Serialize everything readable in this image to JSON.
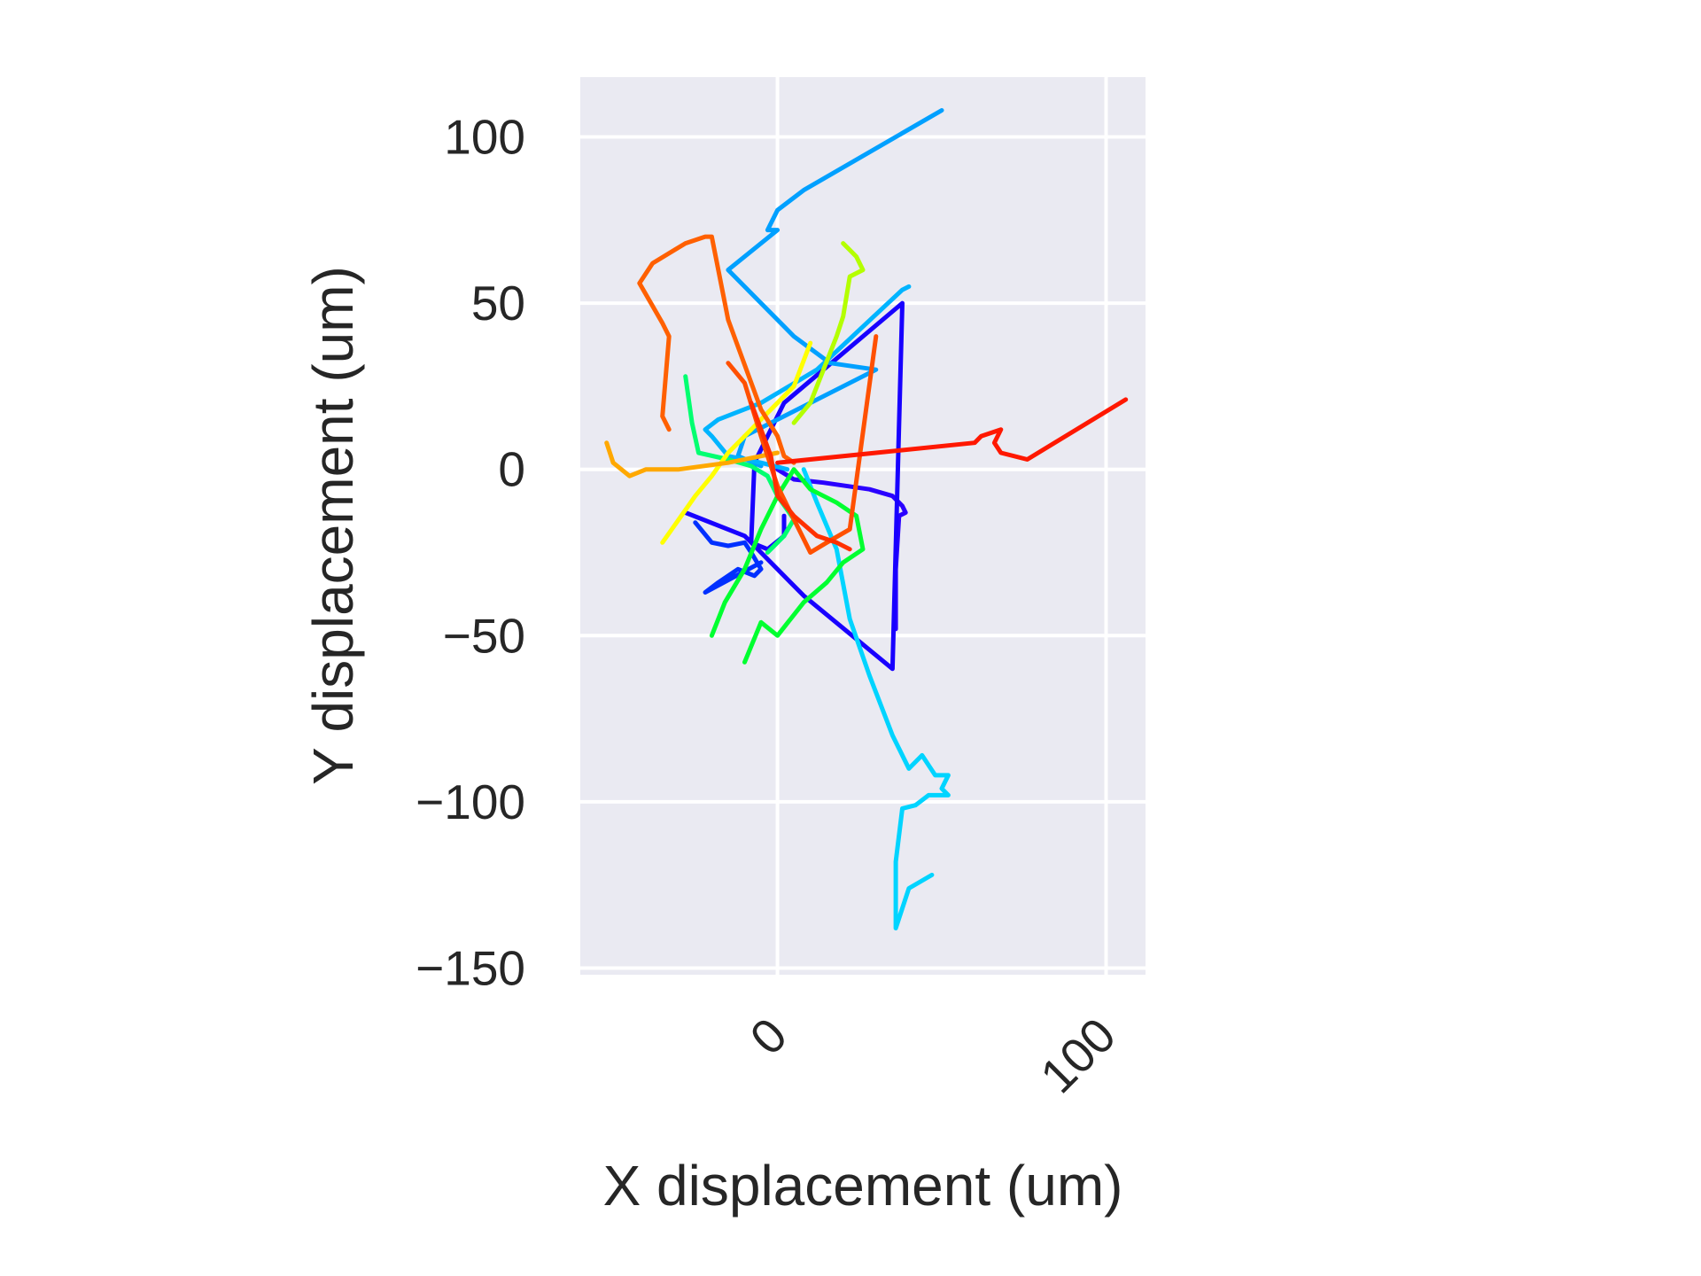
{
  "chart_data": {
    "type": "line",
    "title": "",
    "xlabel": "X displacement (um)",
    "ylabel": "Y displacement (um)",
    "xlim": [
      -60,
      112
    ],
    "ylim": [
      -152,
      118
    ],
    "x_ticks": [
      0,
      100
    ],
    "y_ticks": [
      100,
      50,
      0,
      -50,
      -100,
      -150
    ],
    "x_tick_labels": [
      "0",
      "100"
    ],
    "y_tick_labels": [
      "100",
      "50",
      "0",
      "−50",
      "−100",
      "−150"
    ],
    "x_tick_rotation_deg": 45,
    "grid": true,
    "legend": "none",
    "style": {
      "plot_background": "#eaeaf2",
      "grid_color": "#ffffff",
      "text_color": "#262626",
      "colormap": "jet"
    },
    "series": [
      {
        "color": "#2a00ff",
        "x": [
          0,
          5,
          14,
          28,
          35,
          38,
          39,
          37,
          36,
          36
        ],
        "y": [
          0,
          -3,
          -4,
          -6,
          -8,
          -11,
          -13,
          -14,
          -30,
          -48
        ]
      },
      {
        "color": "#1800ff",
        "x": [
          -28,
          -10,
          8,
          35,
          38,
          2,
          -7,
          -8,
          -3,
          2,
          2
        ],
        "y": [
          -13,
          -20,
          -38,
          -60,
          50,
          20,
          2,
          -22,
          -24,
          -20,
          -14
        ]
      },
      {
        "color": "#0030ff",
        "x": [
          -25,
          -20,
          -15,
          -10,
          -8,
          -5,
          -7,
          -12,
          -18,
          -22,
          -5
        ],
        "y": [
          -16,
          -22,
          -23,
          -22,
          -25,
          -30,
          -32,
          -30,
          -34,
          -37,
          -28
        ]
      },
      {
        "color": "#00a0ff",
        "x": [
          50,
          8,
          0,
          -3,
          0,
          -15,
          -3,
          5,
          16,
          30,
          -10,
          -12,
          -5
        ],
        "y": [
          108,
          84,
          78,
          72,
          72,
          60,
          48,
          40,
          32,
          30,
          10,
          4,
          1
        ]
      },
      {
        "color": "#00b4ff",
        "x": [
          40,
          38,
          25,
          12,
          -5,
          -18,
          -22,
          -20,
          -15,
          -10,
          -5,
          3
        ],
        "y": [
          55,
          54,
          42,
          30,
          20,
          15,
          12,
          10,
          4,
          3,
          2,
          0
        ]
      },
      {
        "color": "#00d4ff",
        "x": [
          8,
          12,
          18,
          22,
          28,
          35,
          40,
          44,
          48,
          52,
          50,
          52,
          46,
          42,
          38,
          36,
          36,
          40,
          47
        ],
        "y": [
          0,
          -10,
          -24,
          -45,
          -62,
          -80,
          -90,
          -86,
          -92,
          -92,
          -96,
          -98,
          -98,
          -101,
          -102,
          -118,
          -138,
          -126,
          -122
        ]
      },
      {
        "color": "#00ff70",
        "x": [
          -28,
          -26,
          -24,
          -15,
          -8,
          -3,
          0,
          5,
          2,
          -3
        ],
        "y": [
          28,
          14,
          5,
          3,
          1,
          -2,
          -8,
          -15,
          -20,
          -25
        ]
      },
      {
        "color": "#00ff30",
        "x": [
          -20,
          -16,
          -10,
          -5,
          0,
          5,
          10,
          18,
          24,
          26,
          20,
          15,
          8,
          0,
          -5,
          -10
        ],
        "y": [
          -50,
          -40,
          -30,
          -18,
          -8,
          0,
          -6,
          -10,
          -14,
          -24,
          -28,
          -34,
          -40,
          -50,
          -46,
          -58
        ]
      },
      {
        "color": "#b4ff00",
        "x": [
          20,
          22,
          24,
          26,
          22,
          20,
          18,
          14,
          10,
          5
        ],
        "y": [
          68,
          66,
          64,
          60,
          58,
          46,
          40,
          30,
          20,
          14
        ]
      },
      {
        "color": "#ffff00",
        "x": [
          -35,
          -30,
          -25,
          -20,
          -15,
          -10,
          -5,
          0,
          5,
          10
        ],
        "y": [
          -22,
          -15,
          -8,
          -2,
          5,
          10,
          15,
          20,
          25,
          38
        ]
      },
      {
        "color": "#ffa800",
        "x": [
          -52,
          -50,
          -45,
          -40,
          -30,
          -15,
          -5,
          0
        ],
        "y": [
          8,
          2,
          -2,
          0,
          0,
          2,
          4,
          5
        ]
      },
      {
        "color": "#ff6000",
        "x": [
          -33,
          -35,
          -33,
          -35,
          -42,
          -38,
          -28,
          -22,
          -20,
          -15,
          -5,
          0,
          2,
          5
        ],
        "y": [
          12,
          16,
          40,
          44,
          56,
          62,
          68,
          70,
          70,
          45,
          18,
          10,
          4,
          2
        ]
      },
      {
        "color": "#ff5000",
        "x": [
          -15,
          -10,
          -5,
          0,
          5,
          10,
          15,
          22,
          30
        ],
        "y": [
          32,
          26,
          10,
          -5,
          -15,
          -25,
          -22,
          -18,
          40
        ]
      },
      {
        "color": "#ff3000",
        "x": [
          -8,
          -5,
          -2,
          0,
          5,
          12,
          18,
          22
        ],
        "y": [
          20,
          12,
          4,
          -8,
          -14,
          -20,
          -22,
          -24
        ]
      },
      {
        "color": "#ff1800",
        "x": [
          0,
          30,
          60,
          62,
          68,
          66,
          68,
          76,
          106
        ],
        "y": [
          2,
          5,
          8,
          10,
          12,
          8,
          5,
          3,
          21
        ]
      }
    ]
  }
}
